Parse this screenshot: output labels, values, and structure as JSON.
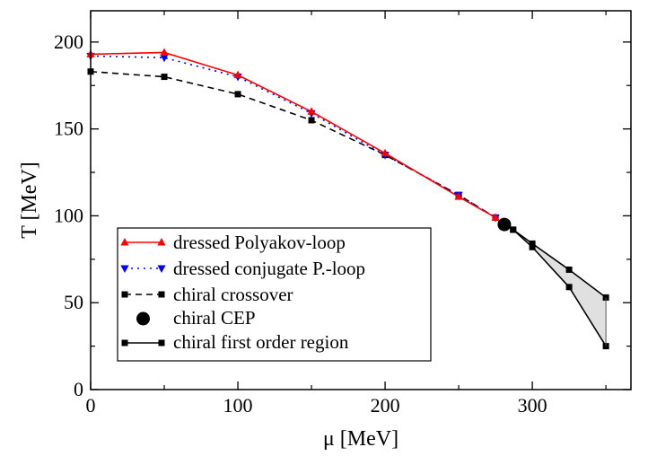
{
  "chart_data": {
    "type": "line",
    "xlabel": "μ [MeV]",
    "ylabel": "T [MeV]",
    "xlim": [
      0,
      367
    ],
    "ylim": [
      0,
      218
    ],
    "x_ticks": [
      0,
      100,
      200,
      300
    ],
    "y_ticks": [
      0,
      50,
      100,
      150,
      200
    ],
    "legend_placement": "bottom-left",
    "grid": false,
    "series": [
      {
        "name": "dressed Polyakov-loop",
        "color": "#ff0000",
        "style": "solid",
        "marker": "triangle-up",
        "points": [
          [
            0,
            193
          ],
          [
            50,
            194
          ],
          [
            100,
            181
          ],
          [
            150,
            160
          ],
          [
            200,
            136
          ],
          [
            250,
            111
          ],
          [
            275,
            99
          ]
        ]
      },
      {
        "name": "dressed conjugate P.-loop",
        "color": "#0000ff",
        "style": "dotted",
        "marker": "triangle-down",
        "points": [
          [
            0,
            192
          ],
          [
            50,
            191
          ],
          [
            100,
            180
          ],
          [
            150,
            159
          ],
          [
            200,
            135
          ],
          [
            250,
            112
          ],
          [
            275,
            99
          ]
        ]
      },
      {
        "name": "chiral crossover",
        "color": "#000000",
        "style": "dashed",
        "marker": "square",
        "points": [
          [
            0,
            183
          ],
          [
            50,
            180
          ],
          [
            100,
            170
          ],
          [
            150,
            155
          ],
          [
            200,
            135
          ],
          [
            250,
            112
          ],
          [
            275,
            99
          ]
        ]
      },
      {
        "name": "chiral CEP",
        "color": "#000000",
        "style": "none",
        "marker": "circle",
        "points": [
          [
            281,
            95
          ]
        ]
      },
      {
        "name": "chiral first order region",
        "color": "#000000",
        "style": "solid",
        "marker": "square",
        "fill": "#e0e0e0",
        "upper": [
          [
            281,
            95
          ],
          [
            287,
            92
          ],
          [
            300,
            84
          ],
          [
            325,
            69
          ],
          [
            350,
            53
          ]
        ],
        "lower": [
          [
            281,
            95
          ],
          [
            287,
            92
          ],
          [
            300,
            82
          ],
          [
            325,
            59
          ],
          [
            350,
            25
          ]
        ]
      }
    ]
  }
}
